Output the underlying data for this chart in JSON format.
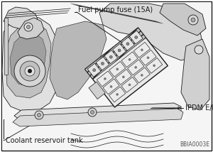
{
  "bg_color": "#ffffff",
  "line_color": "#1a1a1a",
  "fill_light": "#f0f0f0",
  "fill_mid": "#d8d8d8",
  "fill_dark": "#b0b0b0",
  "fill_darkest": "#808080",
  "label_fuel_pump": "Fuel pump fuse (15A)",
  "label_ipdm": "IPDM E/R",
  "label_coolant": "Coolant reservoir tank",
  "label_code": "BBIA0003E",
  "fig_width": 3.0,
  "fig_height": 2.14,
  "dpi": 100,
  "font_size": 7.0,
  "code_fontsize": 5.5
}
